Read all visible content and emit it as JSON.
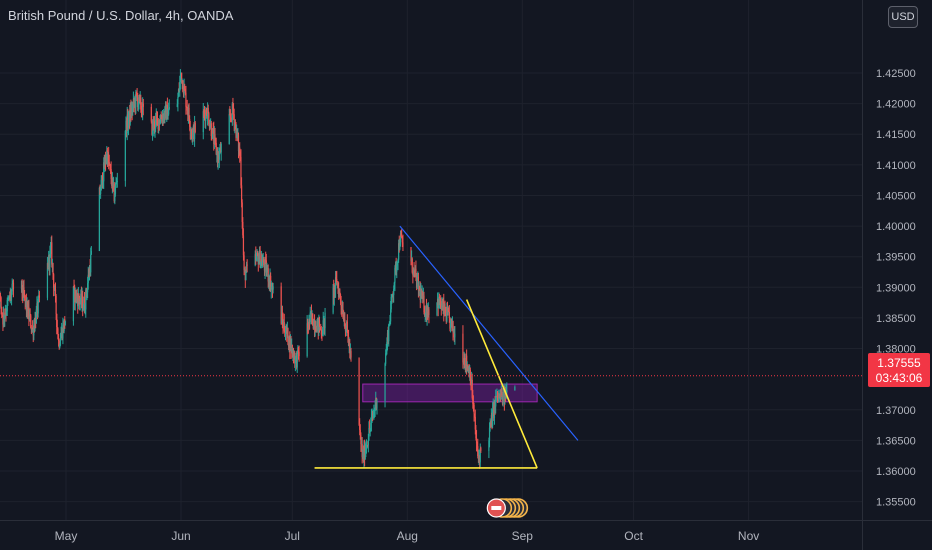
{
  "header": {
    "title": "British Pound / U.S. Dollar, 4h, OANDA",
    "currency": "USD"
  },
  "price_tag": {
    "price": "1.37555",
    "countdown": "03:43:06"
  },
  "colors": {
    "background": "#131722",
    "grid": "#1e222d",
    "up": "#26a69a",
    "down": "#ef5350",
    "axis_text": "#b2b5be",
    "trendline_blue": "#2962ff",
    "triangle_yellow": "#ffeb3b",
    "zone_purple": "#7b1fa2",
    "last_price": "#f23645"
  },
  "chart_data": {
    "type": "candlestick",
    "symbol": "GBPUSD",
    "interval": "4h",
    "x_labels": [
      {
        "label": "May",
        "date": "2021-05-01"
      },
      {
        "label": "Jun",
        "date": "2021-06-01"
      },
      {
        "label": "Jul",
        "date": "2021-07-01"
      },
      {
        "label": "Aug",
        "date": "2021-08-01"
      },
      {
        "label": "Sep",
        "date": "2021-09-01"
      },
      {
        "label": "Oct",
        "date": "2021-10-01"
      },
      {
        "label": "Nov",
        "date": "2021-11-01"
      }
    ],
    "y_ticks": [
      "1.42500",
      "1.42000",
      "1.41500",
      "1.41000",
      "1.40500",
      "1.40000",
      "1.39500",
      "1.39000",
      "1.38500",
      "1.38000",
      "1.37000",
      "1.36500",
      "1.36000",
      "1.35500"
    ],
    "ylim": [
      1.352,
      1.433
    ],
    "last_price": 1.37555,
    "price_path": [
      [
        "2021-04-01",
        1.379
      ],
      [
        "2021-04-05",
        1.385
      ],
      [
        "2021-04-10",
        1.4
      ],
      [
        "2021-04-14",
        1.385
      ],
      [
        "2021-04-18",
        1.392
      ],
      [
        "2021-04-22",
        1.383
      ],
      [
        "2021-04-27",
        1.396
      ],
      [
        "2021-04-29",
        1.381
      ],
      [
        "2021-05-03",
        1.389
      ],
      [
        "2021-05-06",
        1.387
      ],
      [
        "2021-05-10",
        1.405
      ],
      [
        "2021-05-12",
        1.412
      ],
      [
        "2021-05-14",
        1.405
      ],
      [
        "2021-05-17",
        1.416
      ],
      [
        "2021-05-20",
        1.421
      ],
      [
        "2021-05-24",
        1.416
      ],
      [
        "2021-05-27",
        1.418
      ],
      [
        "2021-05-31",
        1.42
      ],
      [
        "2021-06-01",
        1.425
      ],
      [
        "2021-06-04",
        1.415
      ],
      [
        "2021-06-08",
        1.419
      ],
      [
        "2021-06-11",
        1.411
      ],
      [
        "2021-06-15",
        1.419
      ],
      [
        "2021-06-17",
        1.411
      ],
      [
        "2021-06-18",
        1.392
      ],
      [
        "2021-06-22",
        1.395
      ],
      [
        "2021-06-24",
        1.393
      ],
      [
        "2021-06-28",
        1.385
      ],
      [
        "2021-07-02",
        1.378
      ],
      [
        "2021-07-06",
        1.385
      ],
      [
        "2021-07-09",
        1.383
      ],
      [
        "2021-07-13",
        1.391
      ],
      [
        "2021-07-16",
        1.382
      ],
      [
        "2021-07-20",
        1.362
      ],
      [
        "2021-07-22",
        1.367
      ],
      [
        "2021-07-26",
        1.378
      ],
      [
        "2021-07-28",
        1.389
      ],
      [
        "2021-07-30",
        1.398
      ],
      [
        "2021-08-02",
        1.394
      ],
      [
        "2021-08-06",
        1.386
      ],
      [
        "2021-08-09",
        1.388
      ],
      [
        "2021-08-12",
        1.385
      ],
      [
        "2021-08-16",
        1.379
      ],
      [
        "2021-08-18",
        1.376
      ],
      [
        "2021-08-20",
        1.362
      ],
      [
        "2021-08-23",
        1.366
      ],
      [
        "2021-08-25",
        1.372
      ],
      [
        "2021-08-27",
        1.372
      ],
      [
        "2021-08-30",
        1.375
      ]
    ],
    "annotations": [
      {
        "type": "trendline",
        "color": "blue",
        "from": [
          "2021-07-30",
          1.4
        ],
        "to": [
          "2021-09-16",
          1.365
        ]
      },
      {
        "type": "trendline",
        "color": "yellow",
        "from": [
          "2021-08-17",
          1.388
        ],
        "to": [
          "2021-09-05",
          1.3605
        ]
      },
      {
        "type": "horizontal",
        "color": "yellow",
        "from": [
          "2021-07-07",
          1.3605
        ],
        "to": [
          "2021-09-05",
          1.3605
        ]
      },
      {
        "type": "zone",
        "color": "purple",
        "x": [
          "2021-07-20",
          "2021-09-05"
        ],
        "y": [
          1.3713,
          1.3742
        ]
      }
    ],
    "grid": true
  }
}
